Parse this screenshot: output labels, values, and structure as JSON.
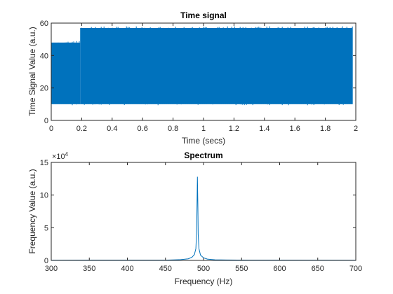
{
  "colors": {
    "series": "#0072BD",
    "axis": "#262626",
    "background": "#ffffff"
  },
  "chart_data": [
    {
      "type": "line",
      "title": "Time signal",
      "xlabel": "Time (secs)",
      "ylabel": "Time Signal Value (a.u.)",
      "xlim": [
        0,
        2
      ],
      "ylim": [
        0,
        60
      ],
      "xticks": [
        "0",
        "0.2",
        "0.4",
        "0.6",
        "0.8",
        "1",
        "1.2",
        "1.4",
        "1.6",
        "1.8",
        "2"
      ],
      "yticks": [
        "0",
        "20",
        "40",
        "60"
      ],
      "grid": false,
      "series": [
        {
          "style": "dense-oscillation",
          "x_end": 1.98,
          "segments": [
            {
              "x": [
                0,
                0.19
              ],
              "min": 10,
              "max": 48
            },
            {
              "x": [
                0.19,
                1.98
              ],
              "min": 10,
              "max": 57
            }
          ]
        }
      ]
    },
    {
      "type": "line",
      "title": "Spectrum",
      "xlabel": "Frequency (Hz)",
      "ylabel": "Frequency Value (a.u.)",
      "xlim": [
        300,
        700
      ],
      "ylim": [
        0,
        150000
      ],
      "xticks": [
        "300",
        "350",
        "400",
        "450",
        "500",
        "550",
        "600",
        "650",
        "700"
      ],
      "yticks": [
        "0",
        "5",
        "10",
        "15"
      ],
      "exponent_label": "×10",
      "exponent_power": "4",
      "grid": false,
      "series": [
        {
          "x": [
            300,
            450,
            470,
            480,
            485,
            488,
            490,
            491,
            491.5,
            492,
            492.5,
            493,
            494,
            496,
            500,
            505,
            515,
            530,
            560,
            700
          ],
          "y": [
            300,
            400,
            1200,
            2500,
            5000,
            9000,
            18000,
            45000,
            90000,
            128000,
            88000,
            40000,
            18000,
            8000,
            4000,
            2000,
            1000,
            600,
            400,
            300
          ]
        }
      ]
    }
  ]
}
